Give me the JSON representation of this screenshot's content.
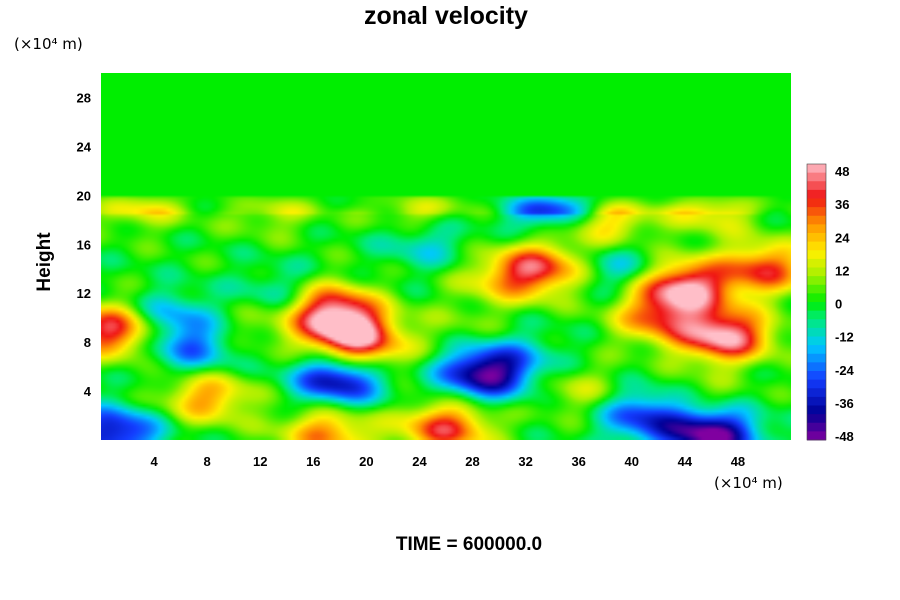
{
  "chart_data": {
    "type": "heatmap",
    "title": "zonal velocity",
    "ylabel": "Height",
    "xlabel": "",
    "x_unit": "(×10⁴ m)",
    "y_unit": "(×10⁴ m)",
    "xlim": [
      0,
      52
    ],
    "ylim": [
      0,
      30
    ],
    "x_ticks": [
      "4",
      "8",
      "12",
      "16",
      "20",
      "24",
      "28",
      "32",
      "36",
      "40",
      "44",
      "48"
    ],
    "y_ticks": [
      "4",
      "8",
      "12",
      "16",
      "20",
      "24",
      "28"
    ],
    "colorbar": {
      "range": [
        -48,
        48
      ],
      "ticks": [
        "48",
        "36",
        "24",
        "12",
        "0",
        "-12",
        "-24",
        "-36",
        "-48"
      ]
    },
    "background_value": 0,
    "features": [
      {
        "x": 18.5,
        "y": 9,
        "value": 46
      },
      {
        "x": 17,
        "y": 11,
        "value": 34
      },
      {
        "x": 20,
        "y": 7,
        "value": 22
      },
      {
        "x": 47,
        "y": 8.5,
        "value": 48
      },
      {
        "x": 44,
        "y": 12.5,
        "value": 46
      },
      {
        "x": 42,
        "y": 10,
        "value": 28
      },
      {
        "x": 50,
        "y": 14,
        "value": 34
      },
      {
        "x": 1,
        "y": 9,
        "value": 42
      },
      {
        "x": 33,
        "y": 14,
        "value": 36
      },
      {
        "x": 26,
        "y": 1,
        "value": 36
      },
      {
        "x": 17,
        "y": 0.6,
        "value": 28
      },
      {
        "x": 8,
        "y": 3.5,
        "value": 26
      },
      {
        "x": 38,
        "y": 18,
        "value": 22
      },
      {
        "x": 46,
        "y": 19,
        "value": 18
      },
      {
        "x": 3,
        "y": 19.5,
        "value": 18
      },
      {
        "x": 24,
        "y": 19.5,
        "value": 16
      },
      {
        "x": 13,
        "y": 19,
        "value": 12
      },
      {
        "x": 30,
        "y": 13,
        "value": 14
      },
      {
        "x": 36,
        "y": 4,
        "value": 12
      },
      {
        "x": 18,
        "y": 5,
        "value": -42
      },
      {
        "x": 29,
        "y": 5.5,
        "value": -46
      },
      {
        "x": 34,
        "y": 19.5,
        "value": -34
      },
      {
        "x": 46,
        "y": 0.5,
        "value": -50
      },
      {
        "x": 41,
        "y": 2,
        "value": -30
      },
      {
        "x": 1,
        "y": 0.6,
        "value": -36
      },
      {
        "x": 7,
        "y": 7.5,
        "value": -22
      },
      {
        "x": 5,
        "y": 10,
        "value": -20
      },
      {
        "x": 14,
        "y": 12,
        "value": -14
      },
      {
        "x": 24.5,
        "y": 16,
        "value": -12
      },
      {
        "x": 39,
        "y": 14,
        "value": -14
      },
      {
        "x": 27,
        "y": 9,
        "value": 6
      },
      {
        "x": 11,
        "y": 9,
        "value": 8
      },
      {
        "x": 32,
        "y": 7,
        "value": -8
      },
      {
        "x": 45,
        "y": 3,
        "value": 10
      }
    ],
    "grid": false
  },
  "footer": {
    "time_label": "TIME = 600000.0"
  },
  "colors": {
    "background": "#ffffff",
    "axis": "#000000",
    "zero_color": "#00ee00"
  }
}
